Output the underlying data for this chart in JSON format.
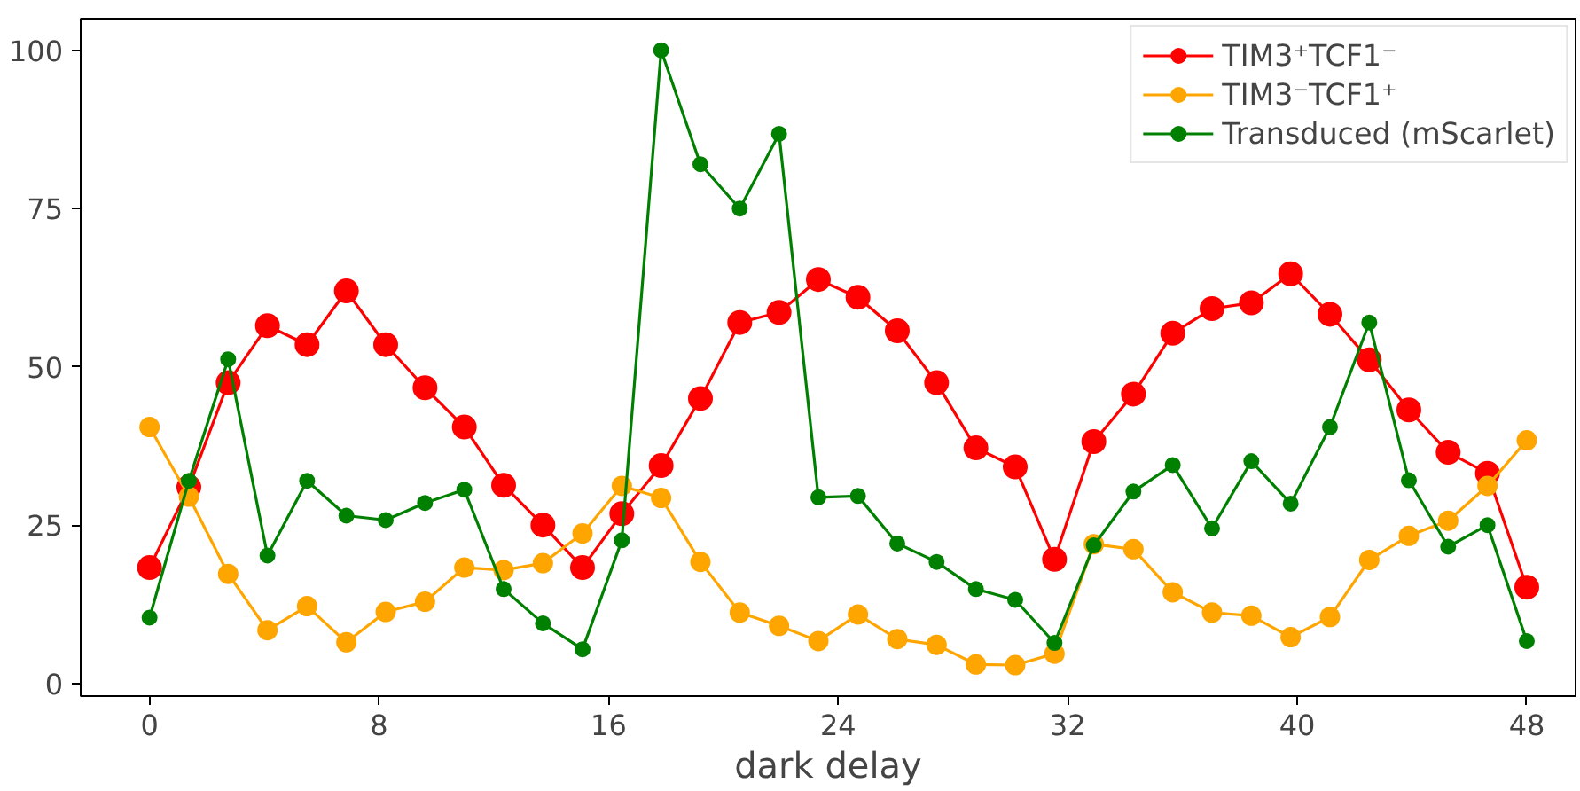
{
  "chart_data": {
    "type": "line",
    "xlabel": "dark delay",
    "x": [
      0,
      1.37,
      2.74,
      4.11,
      5.49,
      6.86,
      8.23,
      9.6,
      10.97,
      12.34,
      13.71,
      15.09,
      16.46,
      17.83,
      19.2,
      20.57,
      21.94,
      23.31,
      24.69,
      26.06,
      27.43,
      28.8,
      30.17,
      31.54,
      32.91,
      34.29,
      35.66,
      37.03,
      38.4,
      39.77,
      41.14,
      42.51,
      43.89,
      45.26,
      46.63,
      48
    ],
    "series": [
      {
        "name": "TIM3⁺TCF1⁻",
        "color": "#ff0000",
        "values": [
          18.3,
          31,
          47.5,
          56.5,
          53.5,
          62,
          53.5,
          46.7,
          40.5,
          31.3,
          25,
          18.3,
          26.8,
          34.4,
          45,
          57,
          58.6,
          63.8,
          61,
          55.7,
          47.5,
          37.2,
          34.2,
          19.6,
          38.2,
          45.7,
          55.3,
          59.2,
          60.1,
          64.7,
          58.3,
          51.1,
          43.2,
          36.5,
          33.2,
          15.2
        ]
      },
      {
        "name": "TIM3⁻TCF1⁺",
        "color": "#ffa500",
        "values": [
          40.5,
          29.5,
          17.3,
          8.4,
          12.2,
          6.5,
          11.3,
          12.9,
          18.3,
          17.9,
          19,
          23.7,
          31.2,
          29.3,
          19.2,
          11.2,
          9.1,
          6.7,
          10.9,
          7,
          6.1,
          3,
          2.9,
          4.7,
          22,
          21.2,
          14.4,
          11.2,
          10.7,
          7.3,
          10.5,
          19.5,
          23.3,
          25.7,
          31.2,
          38.4
        ]
      },
      {
        "name": "Transduced (mScarlet)",
        "color": "#008000",
        "values": [
          10.4,
          32,
          51.2,
          20.2,
          32,
          26.5,
          25.8,
          28.5,
          30.6,
          14.9,
          9.5,
          5.4,
          22.6,
          100,
          82,
          75,
          86.8,
          29.4,
          29.6,
          22.1,
          19.2,
          14.9,
          13.2,
          6.4,
          21.8,
          30.3,
          34.5,
          24.5,
          35.1,
          28.4,
          40.5,
          57,
          32.1,
          21.6,
          25,
          6.7
        ]
      }
    ],
    "xlim": [
      -2.4,
      49.7
    ],
    "ylim": [
      -2,
      105
    ],
    "xticks": [
      0,
      8,
      16,
      24,
      32,
      40,
      48
    ],
    "yticks": [
      0,
      25,
      50,
      75,
      100
    ],
    "marker": "circle",
    "line_style": "solid",
    "legend": "top right",
    "grid": false
  }
}
